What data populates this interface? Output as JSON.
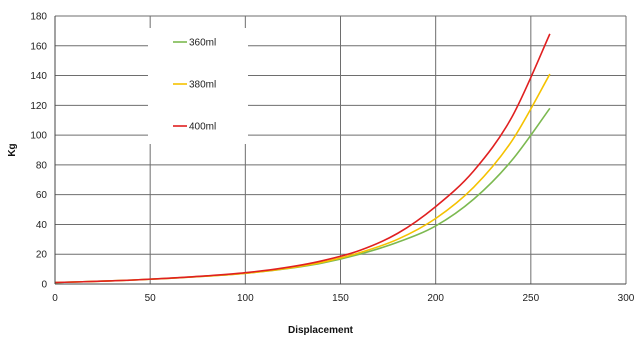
{
  "chart_data": {
    "type": "line",
    "title": "",
    "xlabel": "Displacement",
    "ylabel": "Kg",
    "xlim": [
      0,
      300
    ],
    "ylim": [
      0,
      180
    ],
    "x_ticks": [
      0,
      50,
      100,
      150,
      200,
      250,
      300
    ],
    "y_ticks": [
      0,
      20,
      40,
      60,
      80,
      100,
      120,
      140,
      160,
      180
    ],
    "grid": true,
    "legend_position": "top-left",
    "series": [
      {
        "name": "360ml",
        "color": "#7cb950",
        "x": [
          0,
          20,
          40,
          60,
          80,
          100,
          120,
          140,
          160,
          180,
          200,
          220,
          240,
          260
        ],
        "y": [
          1,
          1.7,
          2.6,
          3.8,
          5.3,
          7.2,
          10,
          14,
          20,
          28,
          39,
          57,
          83,
          118
        ]
      },
      {
        "name": "380ml",
        "color": "#f5c200",
        "x": [
          0,
          20,
          40,
          60,
          80,
          100,
          120,
          140,
          160,
          180,
          200,
          220,
          240,
          260
        ],
        "y": [
          1,
          1.7,
          2.6,
          3.8,
          5.3,
          7.2,
          10.2,
          14.5,
          21,
          30,
          44,
          65,
          96,
          141
        ]
      },
      {
        "name": "400ml",
        "color": "#e02020",
        "x": [
          0,
          20,
          40,
          60,
          80,
          100,
          120,
          140,
          160,
          180,
          200,
          220,
          240,
          260
        ],
        "y": [
          1,
          1.7,
          2.6,
          3.9,
          5.5,
          7.6,
          10.8,
          15.5,
          22.5,
          34,
          52,
          76,
          112,
          168
        ]
      }
    ]
  }
}
